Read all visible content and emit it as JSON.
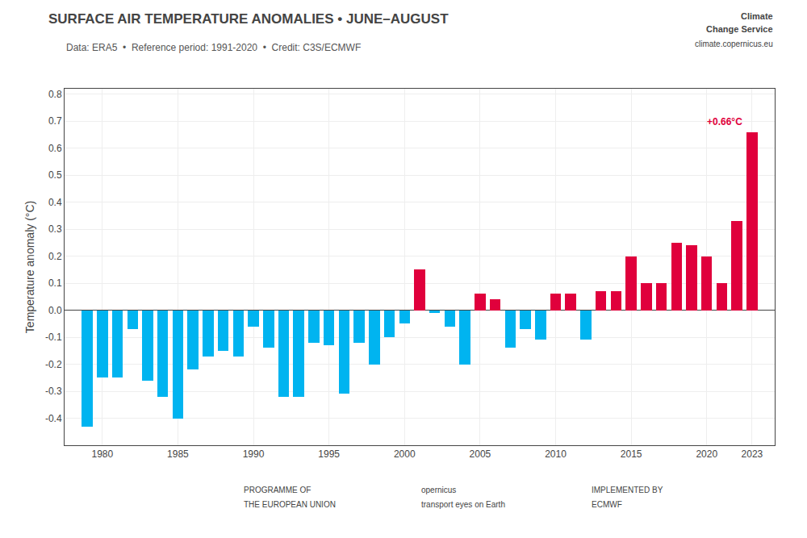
{
  "chart_data": {
    "type": "bar",
    "title": "SURFACE AIR TEMPERATURE ANOMALIES • JUNE–AUGUST",
    "subtitle": "Data: ERA5  •  Reference period: 1991-2020  •  Credit: C3S/ECMWF",
    "y_label": "Temperature anomaly (°C)",
    "x": [
      1979,
      1980,
      1981,
      1982,
      1983,
      1984,
      1985,
      1986,
      1987,
      1988,
      1989,
      1990,
      1991,
      1992,
      1993,
      1994,
      1995,
      1996,
      1997,
      1998,
      1999,
      2000,
      2001,
      2002,
      2003,
      2004,
      2005,
      2006,
      2007,
      2008,
      2009,
      2010,
      2011,
      2012,
      2013,
      2014,
      2015,
      2016,
      2017,
      2018,
      2019,
      2020,
      2021,
      2022,
      2023
    ],
    "values": [
      -0.43,
      -0.25,
      -0.25,
      -0.07,
      -0.26,
      -0.32,
      -0.4,
      -0.22,
      -0.17,
      -0.15,
      -0.17,
      -0.06,
      -0.14,
      -0.32,
      -0.32,
      -0.12,
      -0.13,
      -0.31,
      -0.12,
      -0.2,
      -0.1,
      -0.05,
      0.15,
      -0.01,
      -0.06,
      -0.2,
      0.06,
      0.04,
      -0.14,
      -0.07,
      -0.11,
      0.06,
      0.06,
      -0.11,
      0.07,
      0.07,
      0.2,
      0.1,
      0.1,
      0.25,
      0.24,
      0.2,
      0.1,
      0.33,
      0.66
    ],
    "colors": [
      "#00b4f0",
      "#00b4f0",
      "#00b4f0",
      "#00b4f0",
      "#00b4f0",
      "#00b4f0",
      "#00b4f0",
      "#00b4f0",
      "#00b4f0",
      "#00b4f0",
      "#00b4f0",
      "#00b4f0",
      "#00b4f0",
      "#00b4f0",
      "#00b4f0",
      "#00b4f0",
      "#00b4f0",
      "#00b4f0",
      "#00b4f0",
      "#00b4f0",
      "#00b4f0",
      "#00b4f0",
      "#e0003c",
      "#00b4f0",
      "#00b4f0",
      "#00b4f0",
      "#e0003c",
      "#e0003c",
      "#00b4f0",
      "#00b4f0",
      "#00b4f0",
      "#e0003c",
      "#e0003c",
      "#00b4f0",
      "#e0003c",
      "#e0003c",
      "#e0003c",
      "#e0003c",
      "#e0003c",
      "#e0003c",
      "#e0003c",
      "#e0003c",
      "#e0003c",
      "#e0003c",
      "#e0003c"
    ],
    "xlim": [
      1977.5,
      2024.5
    ],
    "xticks": [
      1980,
      1985,
      1990,
      1995,
      2000,
      2005,
      2010,
      2015,
      2020,
      2023
    ],
    "ylim": [
      -0.5,
      0.82
    ],
    "yticks": [
      -0.4,
      -0.3,
      -0.2,
      -0.1,
      {
        "value": 0.0,
        "label": "0.0"
      },
      0.1,
      0.2,
      0.3,
      0.4,
      0.5,
      0.6,
      0.7,
      0.8
    ],
    "grid": true,
    "annotations": [
      "+0.66°C",
      "Climate",
      "Change Service",
      "climate.copernicus.eu",
      "PROGRAMME OF",
      "THE EUROPEAN UNION",
      "opernicus",
      "transport eyes on Earth",
      "IMPLEMENTED BY",
      "ECMWF"
    ]
  }
}
